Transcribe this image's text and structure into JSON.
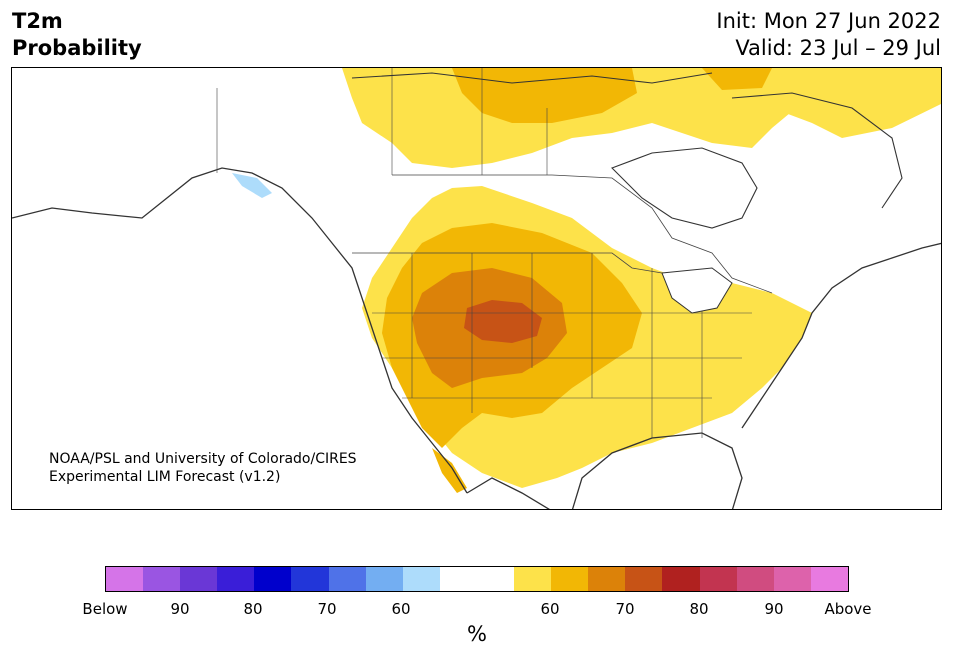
{
  "header": {
    "title_line1": "T2m",
    "title_line2": "Probability",
    "init_line": "Init: Mon 27 Jun 2022",
    "valid_line": "Valid: 23 Jul – 29 Jul"
  },
  "credit": {
    "line1": "NOAA/PSL and University of Colorado/CIRES",
    "line2": "Experimental LIM Forecast (v1.2)"
  },
  "colorbar": {
    "colors": [
      "#d574e8",
      "#9a55e2",
      "#6a37d6",
      "#3a1ed8",
      "#0000cc",
      "#2236d9",
      "#4f72e8",
      "#73aef2",
      "#addcfb",
      "#ffffff",
      "#ffffff",
      "#fde24a",
      "#f2b705",
      "#dc8209",
      "#c75316",
      "#b0211f",
      "#c23450",
      "#d04c80",
      "#dd62ab",
      "#e87ae0"
    ],
    "labels": [
      "Below",
      "90",
      "80",
      "70",
      "60",
      "60",
      "70",
      "80",
      "90",
      "Above"
    ],
    "unit": "%"
  },
  "map_colors": {
    "level_60": "#fde24a",
    "level_70": "#f2b705",
    "level_80": "#dc8209",
    "level_90": "#c75316",
    "below_60": "#addcfb",
    "land_line": "#333333",
    "border_line": "#444444"
  }
}
